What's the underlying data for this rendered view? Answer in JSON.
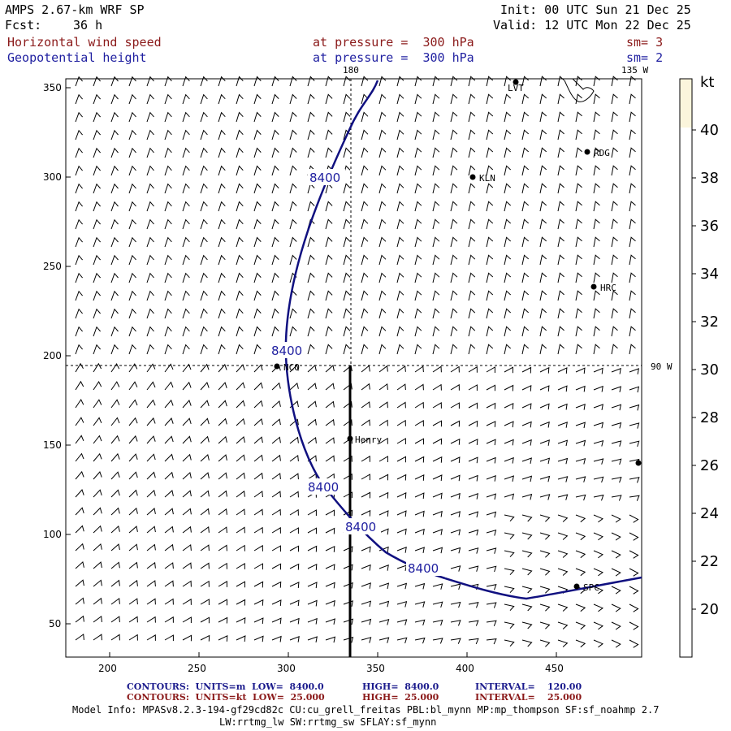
{
  "header": {
    "model": "AMPS 2.67-km WRF SP",
    "fcst_label": "Fcst:",
    "fcst_value": "36 h",
    "init": "Init: 00 UTC Sun 21 Dec 25",
    "valid": "Valid: 12 UTC Mon 22 Dec 25",
    "field1_name": "Horizontal wind speed",
    "field1_level": "at pressure =  300 hPa",
    "field1_sm": "sm= 3",
    "field2_name": "Geopotential height",
    "field2_level": "at pressure =  300 hPa",
    "field2_sm": "sm= 2"
  },
  "map": {
    "meridian_labels": [
      "180",
      "135 W",
      "90 W"
    ],
    "x_ticks": [
      "200",
      "250",
      "300",
      "350",
      "400",
      "450"
    ],
    "y_ticks": [
      "350",
      "300",
      "250",
      "200",
      "150",
      "100",
      "50"
    ],
    "contour_value": "8400",
    "contour_labels": [
      "8400",
      "8400",
      "8400",
      "8400",
      "8400"
    ],
    "stations": [
      "LVT",
      "RDG",
      "KLN",
      "HRC",
      "NCO",
      "Henry",
      "SPC"
    ],
    "colors": {
      "contour": "#101080",
      "barb": "#000000",
      "colorbar_top": "#fbf5dc"
    }
  },
  "colorbar": {
    "unit": "kt",
    "labels": [
      "40",
      "38",
      "36",
      "34",
      "32",
      "30",
      "28",
      "26",
      "24",
      "22",
      "20"
    ],
    "filled_fraction": 0.07
  },
  "footer": {
    "row1_a": "CONTOURS:  UNITS=m  LOW=  8400.0",
    "row1_b": "HIGH=  8400.0",
    "row1_c": "INTERVAL=    120.00",
    "row2_a": "CONTOURS:  UNITS=kt  LOW=  25.000",
    "row2_b": "HIGH=  25.000",
    "row2_c": "INTERVAL=    25.000",
    "model_info": "Model Info: MPASv8.2.3-194-gf29cd82c CU:cu_grell_freitas PBL:bl_mynn MP:mp_thompson SF:sf_noahmp 2.7",
    "model_info2": "LW:rrtmg_lw SW:rrtmg_sw SFLAY:sf_mynn"
  }
}
